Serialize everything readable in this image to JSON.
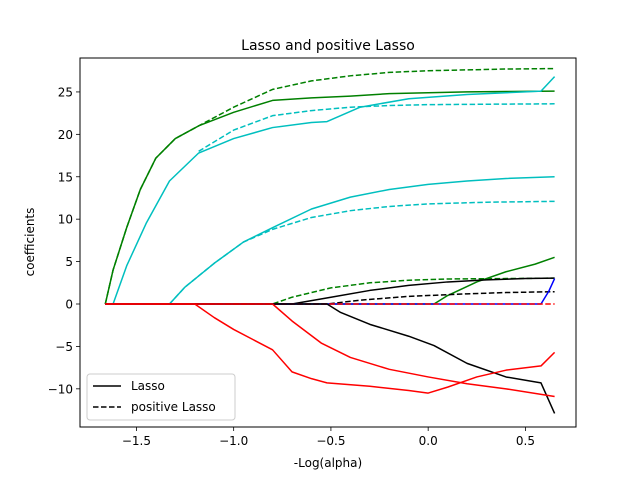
{
  "chart_data": {
    "type": "line",
    "title": "Lasso and positive Lasso",
    "xlabel": "-Log(alpha)",
    "ylabel": "coefficients",
    "xlim": [
      -1.79,
      0.76
    ],
    "ylim": [
      -14.5,
      29.0
    ],
    "xticks": [
      -1.5,
      -1.0,
      -0.5,
      0.0,
      0.5
    ],
    "xtick_labels": [
      "−1.5",
      "−1.0",
      "−0.5",
      "0.0",
      "0.5"
    ],
    "yticks": [
      -10,
      -5,
      0,
      5,
      10,
      15,
      20,
      25
    ],
    "ytick_labels": [
      "−10",
      "−5",
      "0",
      "5",
      "10",
      "15",
      "20",
      "25"
    ],
    "grid": false,
    "legend": {
      "placement": "lower-left",
      "entries": [
        {
          "label": "Lasso",
          "style": "solid",
          "color": "#000000"
        },
        {
          "label": "positive Lasso",
          "style": "dashed",
          "color": "#000000"
        }
      ]
    },
    "series": [
      {
        "color": "#008000",
        "style": "solid",
        "points": [
          [
            -1.66,
            0
          ],
          [
            -1.62,
            4
          ],
          [
            -1.55,
            9
          ],
          [
            -1.48,
            13.5
          ],
          [
            -1.4,
            17.2
          ],
          [
            -1.3,
            19.5
          ],
          [
            -1.18,
            21.0
          ],
          [
            -1.0,
            22.6
          ],
          [
            -0.8,
            24.0
          ],
          [
            -0.6,
            24.3
          ],
          [
            -0.4,
            24.5
          ],
          [
            -0.2,
            24.8
          ],
          [
            0.0,
            24.9
          ],
          [
            0.2,
            25.0
          ],
          [
            0.4,
            25.05
          ],
          [
            0.65,
            25.1
          ]
        ]
      },
      {
        "color": "#008000",
        "style": "dashed",
        "points": [
          [
            -1.66,
            0
          ],
          [
            -1.62,
            4
          ],
          [
            -1.55,
            9
          ],
          [
            -1.48,
            13.5
          ],
          [
            -1.4,
            17.2
          ],
          [
            -1.3,
            19.5
          ],
          [
            -1.18,
            21.0
          ],
          [
            -1.0,
            23.2
          ],
          [
            -0.8,
            25.3
          ],
          [
            -0.6,
            26.3
          ],
          [
            -0.4,
            26.9
          ],
          [
            -0.2,
            27.3
          ],
          [
            0.0,
            27.5
          ],
          [
            0.2,
            27.6
          ],
          [
            0.4,
            27.7
          ],
          [
            0.65,
            27.75
          ]
        ]
      },
      {
        "color": "#00bfbf",
        "style": "solid",
        "points": [
          [
            -1.66,
            0
          ],
          [
            -1.62,
            0
          ],
          [
            -1.55,
            4.5
          ],
          [
            -1.45,
            9.5
          ],
          [
            -1.33,
            14.5
          ],
          [
            -1.18,
            17.8
          ],
          [
            -1.0,
            19.5
          ],
          [
            -0.8,
            20.8
          ],
          [
            -0.6,
            21.4
          ],
          [
            -0.52,
            21.5
          ],
          [
            -0.35,
            23.2
          ],
          [
            -0.1,
            24.2
          ],
          [
            0.2,
            24.7
          ],
          [
            0.4,
            24.9
          ],
          [
            0.58,
            25.1
          ],
          [
            0.65,
            26.8
          ]
        ]
      },
      {
        "color": "#00bfbf",
        "style": "dashed",
        "points": [
          [
            -1.18,
            18.0
          ],
          [
            -1.0,
            20.5
          ],
          [
            -0.8,
            22.2
          ],
          [
            -0.6,
            22.8
          ],
          [
            -0.4,
            23.2
          ],
          [
            -0.2,
            23.4
          ],
          [
            0.0,
            23.5
          ],
          [
            0.3,
            23.55
          ],
          [
            0.65,
            23.6
          ]
        ]
      },
      {
        "color": "#00bfbf",
        "style": "solid",
        "points": [
          [
            -1.66,
            0
          ],
          [
            -1.33,
            0
          ],
          [
            -1.25,
            2.0
          ],
          [
            -1.1,
            4.8
          ],
          [
            -0.95,
            7.3
          ],
          [
            -0.8,
            9.0
          ],
          [
            -0.6,
            11.2
          ],
          [
            -0.4,
            12.6
          ],
          [
            -0.2,
            13.5
          ],
          [
            0.0,
            14.1
          ],
          [
            0.2,
            14.5
          ],
          [
            0.4,
            14.8
          ],
          [
            0.65,
            15.0
          ]
        ]
      },
      {
        "color": "#00bfbf",
        "style": "dashed",
        "points": [
          [
            -1.33,
            0
          ],
          [
            -1.25,
            2.0
          ],
          [
            -1.1,
            4.8
          ],
          [
            -0.95,
            7.3
          ],
          [
            -0.8,
            8.8
          ],
          [
            -0.6,
            10.2
          ],
          [
            -0.4,
            11.0
          ],
          [
            -0.2,
            11.5
          ],
          [
            0.0,
            11.8
          ],
          [
            0.3,
            12.0
          ],
          [
            0.65,
            12.1
          ]
        ]
      },
      {
        "color": "#008000",
        "style": "solid",
        "points": [
          [
            -1.66,
            0
          ],
          [
            0.03,
            0
          ],
          [
            0.1,
            1.0
          ],
          [
            0.25,
            2.6
          ],
          [
            0.4,
            3.8
          ],
          [
            0.55,
            4.7
          ],
          [
            0.65,
            5.5
          ]
        ]
      },
      {
        "color": "#008000",
        "style": "dashed",
        "points": [
          [
            -1.66,
            0
          ],
          [
            -0.8,
            0
          ],
          [
            -0.7,
            0.8
          ],
          [
            -0.5,
            1.9
          ],
          [
            -0.3,
            2.5
          ],
          [
            -0.1,
            2.8
          ],
          [
            0.1,
            2.95
          ],
          [
            0.4,
            3.0
          ],
          [
            0.65,
            3.05
          ]
        ]
      },
      {
        "color": "#000000",
        "style": "solid",
        "points": [
          [
            -1.66,
            0
          ],
          [
            -0.7,
            0
          ],
          [
            -0.5,
            0.8
          ],
          [
            -0.3,
            1.6
          ],
          [
            -0.1,
            2.2
          ],
          [
            0.1,
            2.6
          ],
          [
            0.3,
            2.85
          ],
          [
            0.5,
            3.0
          ],
          [
            0.65,
            3.05
          ]
        ]
      },
      {
        "color": "#000000",
        "style": "dashed",
        "points": [
          [
            -1.66,
            0
          ],
          [
            -0.52,
            0
          ],
          [
            -0.35,
            0.45
          ],
          [
            -0.1,
            0.9
          ],
          [
            0.2,
            1.2
          ],
          [
            0.4,
            1.35
          ],
          [
            0.65,
            1.45
          ]
        ]
      },
      {
        "color": "#0000ff",
        "style": "solid",
        "points": [
          [
            -1.66,
            0
          ],
          [
            0.58,
            0
          ],
          [
            0.62,
            1.5
          ],
          [
            0.65,
            3.0
          ]
        ]
      },
      {
        "color": "#ff0000",
        "style": "dashed",
        "points": [
          [
            -1.66,
            0
          ],
          [
            0.65,
            0
          ]
        ]
      },
      {
        "color": "#000000",
        "style": "solid",
        "points": [
          [
            -1.66,
            0
          ],
          [
            -0.52,
            0
          ],
          [
            -0.45,
            -1.0
          ],
          [
            -0.3,
            -2.4
          ],
          [
            -0.1,
            -3.8
          ],
          [
            0.03,
            -4.9
          ],
          [
            0.2,
            -7.0
          ],
          [
            0.4,
            -8.6
          ],
          [
            0.58,
            -9.3
          ],
          [
            0.65,
            -12.9
          ]
        ]
      },
      {
        "color": "#ff0000",
        "style": "solid",
        "points": [
          [
            -1.66,
            0
          ],
          [
            -1.2,
            0
          ],
          [
            -1.1,
            -1.6
          ],
          [
            -1.0,
            -3.0
          ],
          [
            -0.9,
            -4.2
          ],
          [
            -0.8,
            -5.4
          ],
          [
            -0.7,
            -8.0
          ],
          [
            -0.6,
            -8.8
          ],
          [
            -0.52,
            -9.3
          ],
          [
            -0.3,
            -9.7
          ],
          [
            -0.1,
            -10.2
          ],
          [
            0.0,
            -10.5
          ],
          [
            0.1,
            -9.8
          ],
          [
            0.25,
            -8.6
          ],
          [
            0.4,
            -7.8
          ],
          [
            0.58,
            -7.3
          ],
          [
            0.65,
            -5.7
          ]
        ]
      },
      {
        "color": "#ff0000",
        "style": "solid",
        "points": [
          [
            -1.66,
            0
          ],
          [
            -0.8,
            0
          ],
          [
            -0.7,
            -2.0
          ],
          [
            -0.55,
            -4.6
          ],
          [
            -0.4,
            -6.3
          ],
          [
            -0.2,
            -7.7
          ],
          [
            0.0,
            -8.6
          ],
          [
            0.2,
            -9.4
          ],
          [
            0.4,
            -10.0
          ],
          [
            0.65,
            -10.9
          ]
        ]
      }
    ]
  }
}
